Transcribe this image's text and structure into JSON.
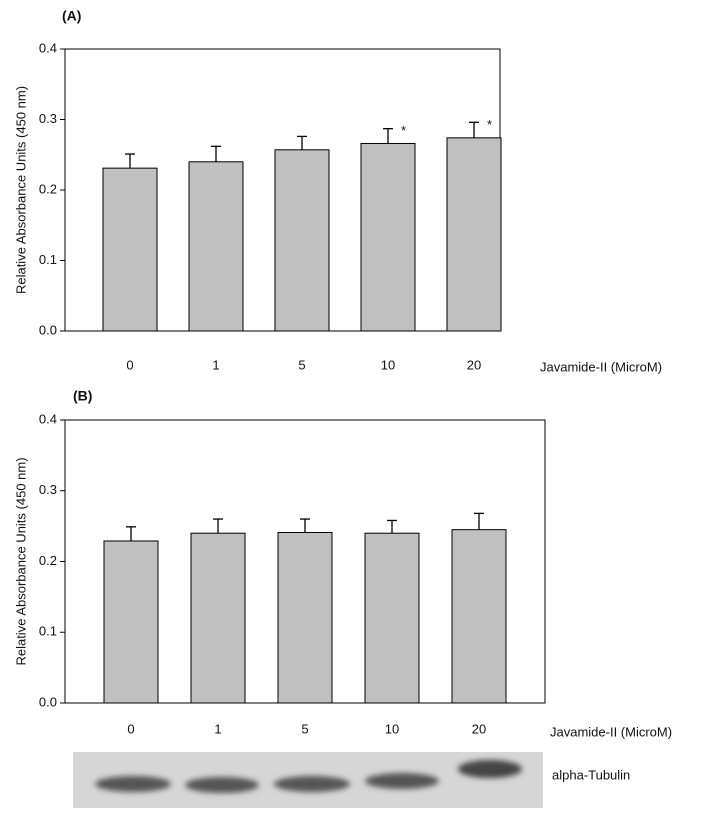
{
  "chart_data": [
    {
      "type": "bar",
      "panel_label": "(A)",
      "y_label": "Relative Absorbance Units (450 nm)",
      "x_label": "Javamide-II (MicroM)",
      "categories": [
        "0",
        "1",
        "5",
        "10",
        "20"
      ],
      "values": [
        0.231,
        0.24,
        0.257,
        0.266,
        0.274
      ],
      "errors": [
        0.02,
        0.022,
        0.019,
        0.021,
        0.022
      ],
      "markers": [
        null,
        null,
        null,
        "*",
        "*"
      ],
      "color": "#c0c0c0",
      "ylim": [
        0,
        0.4
      ],
      "yticks": [
        {
          "value": 0,
          "label": "0.0"
        },
        0.1,
        0.2,
        0.3,
        0.4
      ]
    },
    {
      "type": "bar",
      "panel_label": "(B)",
      "y_label": "Relative Absorbance Units (450 nm)",
      "x_label": "Javamide-II (MicroM)",
      "categories": [
        "0",
        "1",
        "5",
        "10",
        "20"
      ],
      "values": [
        0.229,
        0.24,
        0.241,
        0.24,
        0.245
      ],
      "errors": [
        0.02,
        0.02,
        0.019,
        0.018,
        0.023
      ],
      "color": "#c0c0c0",
      "ylim": [
        0,
        0.4
      ],
      "yticks": [
        {
          "value": 0,
          "label": "0.0"
        },
        0.1,
        0.2,
        0.3,
        0.4
      ]
    }
  ],
  "blot": {
    "label": "alpha-Tubulin"
  }
}
